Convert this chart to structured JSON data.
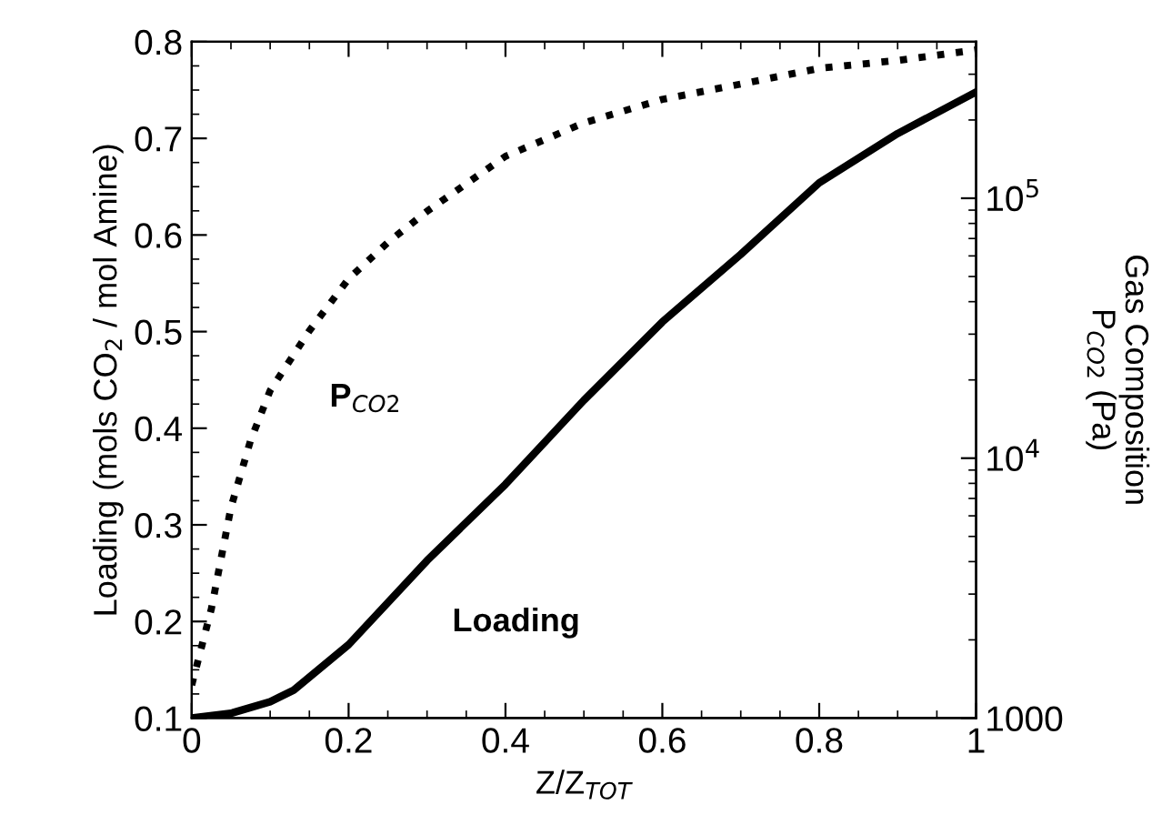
{
  "chart_data": {
    "type": "line",
    "xlabel": "Z/Z$_{TOT}$",
    "ylabel": "Loading (mols CO$_{2}$ / mol Amine)",
    "y2label": "Gas Composition\nP$_{CO2}$ (Pa)",
    "series": [
      {
        "name": "Loading",
        "color": "#000000",
        "line_style": "solid",
        "x": [
          0,
          0.05,
          0.1,
          0.13,
          0.2,
          0.3,
          0.4,
          0.5,
          0.6,
          0.7,
          0.8,
          0.9,
          1.0
        ],
        "values": [
          0.1,
          0.105,
          0.117,
          0.129,
          0.176,
          0.263,
          0.342,
          0.429,
          0.51,
          0.58,
          0.654,
          0.705,
          0.748
        ]
      },
      {
        "name": "P$_{CO2}$",
        "color": "#000000",
        "line_style": "dotted",
        "axis": "y2",
        "x": [
          0,
          0.025,
          0.05,
          0.075,
          0.1,
          0.15,
          0.2,
          0.25,
          0.3,
          0.4,
          0.5,
          0.6,
          0.7,
          0.8,
          0.9,
          1.0
        ],
        "values": [
          1340,
          2630,
          6460,
          11700,
          18200,
          30900,
          49000,
          67600,
          89100,
          145000,
          195000,
          240000,
          275000,
          316000,
          339000,
          372000
        ]
      }
    ],
    "xlim": [
      0,
      1
    ],
    "xticks": [
      0,
      0.2,
      0.4,
      0.6,
      0.8,
      1
    ],
    "ylim": [
      0.1,
      0.8
    ],
    "yticks": [
      0.1,
      0.2,
      0.3,
      0.4,
      0.5,
      0.6,
      0.7,
      0.8
    ],
    "log": "y2",
    "y2lim": [
      1000,
      400000
    ],
    "y2ticks": [
      1000,
      {
        "value": 10000,
        "label": "10$^{4}$"
      },
      {
        "value": 100000,
        "label": "10$^{5}$"
      }
    ],
    "grid": false,
    "legend": false
  }
}
